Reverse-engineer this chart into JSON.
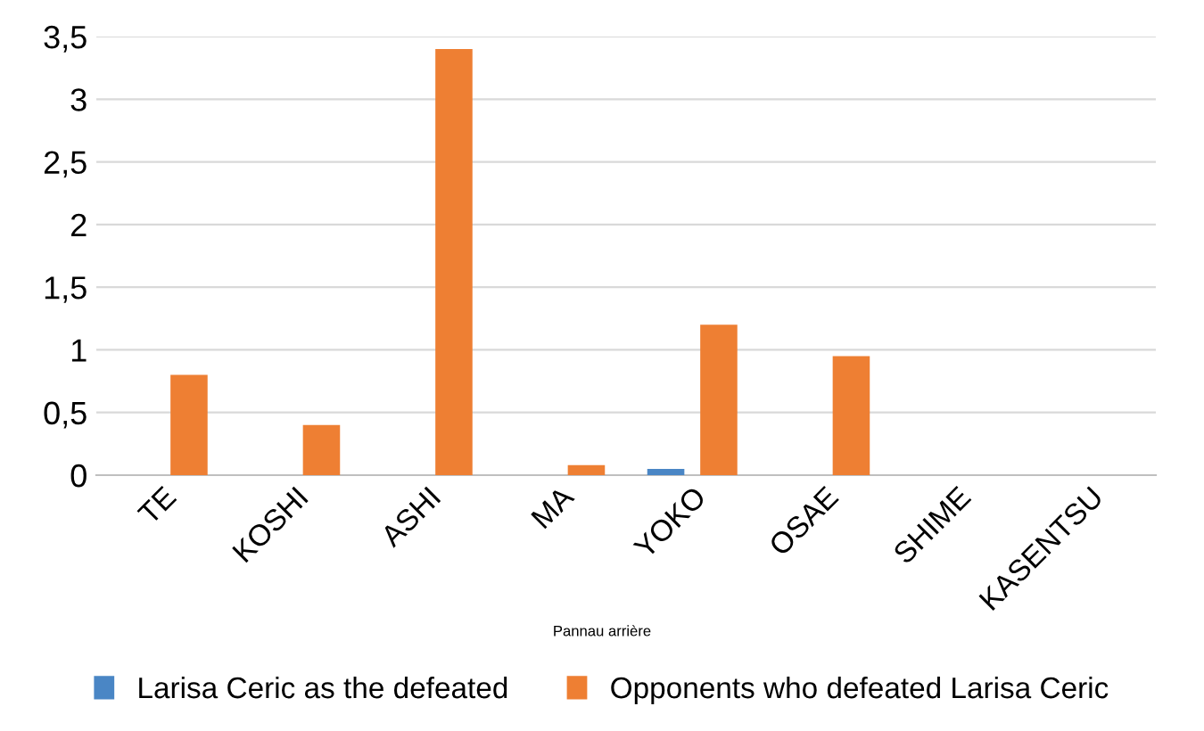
{
  "chart_data": {
    "type": "bar",
    "categories": [
      "TE",
      "KOSHI",
      "ASHI",
      "MA",
      "YOKO",
      "OSAE",
      "SHIME",
      "KASENTSU"
    ],
    "series": [
      {
        "name": "Larisa Ceric as the defeated",
        "color": "#4a86c5",
        "values": [
          0,
          0,
          0,
          0,
          0.05,
          0,
          0,
          0
        ]
      },
      {
        "name": "Opponents who defeated Larisa Ceric",
        "color": "#ee7f33",
        "values": [
          0.8,
          0.4,
          3.4,
          0.08,
          1.2,
          0.95,
          0,
          0
        ]
      }
    ],
    "ylim": [
      0,
      3.5
    ],
    "yticks": [
      {
        "value": 0,
        "label": "0"
      },
      {
        "value": 0.5,
        "label": "0,5"
      },
      {
        "value": 1,
        "label": "1"
      },
      {
        "value": 1.5,
        "label": "1,5"
      },
      {
        "value": 2,
        "label": "2"
      },
      {
        "value": 2.5,
        "label": "2,5"
      },
      {
        "value": 3,
        "label": "3"
      },
      {
        "value": 3.5,
        "label": "3,5"
      }
    ],
    "grid": "y",
    "legend": "bottom",
    "annotations": [
      "Pannau arrière"
    ]
  }
}
